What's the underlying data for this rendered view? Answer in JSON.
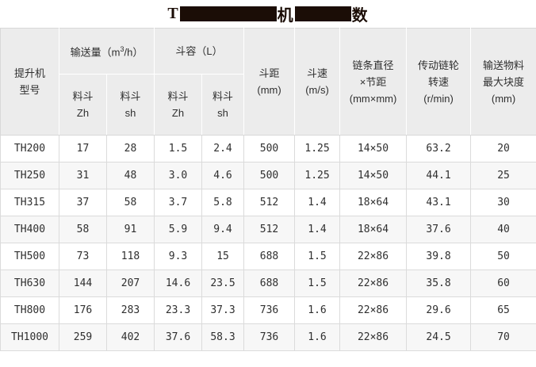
{
  "page": {
    "title": {
      "visible_prefix": "T",
      "visible_middle": "机",
      "visible_suffix": "数"
    }
  },
  "colors": {
    "header_bg": "#ececec",
    "alt_row_bg": "#f7f7f7",
    "border": "#d8d8d8",
    "text": "#2f2f2f",
    "title_and_redaction": "#1b0d06"
  },
  "table": {
    "header": {
      "model": [
        "提升机",
        "型号"
      ],
      "capacity_group": {
        "pre": "输送量（m",
        "sup": "3",
        "post": "/h）"
      },
      "volume_group": "斗容（L）",
      "capacity_sub_zh": [
        "料斗",
        "Zh"
      ],
      "capacity_sub_sh": [
        "料斗",
        "sh"
      ],
      "volume_sub_zh": [
        "料斗",
        "Zh"
      ],
      "volume_sub_sh": [
        "料斗",
        "sh"
      ],
      "bucket_pitch": [
        "斗距",
        "(mm)"
      ],
      "bucket_speed": [
        "斗速",
        "(m/s)"
      ],
      "chain_spec": [
        "链条直径",
        "×节距",
        "(mm×mm)"
      ],
      "sprocket_speed": [
        "传动链轮",
        "转速",
        "(r/min)"
      ],
      "max_lump_size": [
        "输送物料",
        "最大块度",
        "(mm)"
      ]
    },
    "rows": [
      {
        "cells": [
          "TH200",
          "17",
          "28",
          "1.5",
          "2.4",
          "500",
          "1.25",
          "14×50",
          "63.2",
          "20"
        ]
      },
      {
        "cells": [
          "TH250",
          "31",
          "48",
          "3.0",
          "4.6",
          "500",
          "1.25",
          "14×50",
          "44.1",
          "25"
        ]
      },
      {
        "cells": [
          "TH315",
          "37",
          "58",
          "3.7",
          "5.8",
          "512",
          "1.4",
          "18×64",
          "43.1",
          "30"
        ]
      },
      {
        "cells": [
          "TH400",
          "58",
          "91",
          "5.9",
          "9.4",
          "512",
          "1.4",
          "18×64",
          "37.6",
          "40"
        ]
      },
      {
        "cells": [
          "TH500",
          "73",
          "118",
          "9.3",
          "15",
          "688",
          "1.5",
          "22×86",
          "39.8",
          "50"
        ]
      },
      {
        "cells": [
          "TH630",
          "144",
          "207",
          "14.6",
          "23.5",
          "688",
          "1.5",
          "22×86",
          "35.8",
          "60"
        ]
      },
      {
        "cells": [
          "TH800",
          "176",
          "283",
          "23.3",
          "37.3",
          "736",
          "1.6",
          "22×86",
          "29.6",
          "65"
        ]
      },
      {
        "cells": [
          "TH1000",
          "259",
          "402",
          "37.6",
          "58.3",
          "736",
          "1.6",
          "22×86",
          "24.5",
          "70"
        ]
      }
    ]
  }
}
